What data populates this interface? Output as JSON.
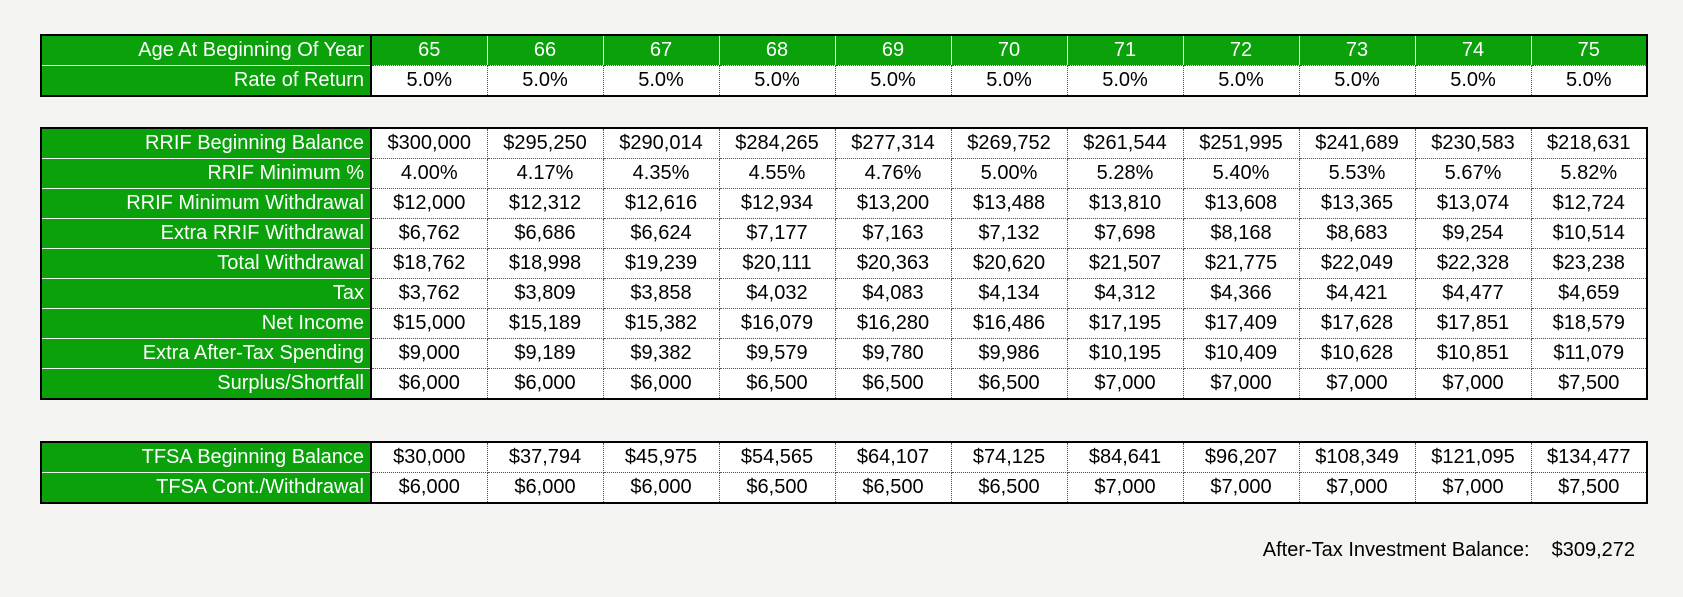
{
  "age_row": {
    "label": "Age At Beginning Of Year",
    "values": [
      "65",
      "66",
      "67",
      "68",
      "69",
      "70",
      "71",
      "72",
      "73",
      "74",
      "75"
    ]
  },
  "return_row": {
    "label": "Rate of Return",
    "values": [
      "5.0%",
      "5.0%",
      "5.0%",
      "5.0%",
      "5.0%",
      "5.0%",
      "5.0%",
      "5.0%",
      "5.0%",
      "5.0%",
      "5.0%"
    ]
  },
  "rrif_rows": [
    {
      "label": "RRIF Beginning Balance",
      "values": [
        "$300,000",
        "$295,250",
        "$290,014",
        "$284,265",
        "$277,314",
        "$269,752",
        "$261,544",
        "$251,995",
        "$241,689",
        "$230,583",
        "$218,631"
      ]
    },
    {
      "label": "RRIF Minimum %",
      "values": [
        "4.00%",
        "4.17%",
        "4.35%",
        "4.55%",
        "4.76%",
        "5.00%",
        "5.28%",
        "5.40%",
        "5.53%",
        "5.67%",
        "5.82%"
      ]
    },
    {
      "label": "RRIF Minimum Withdrawal",
      "values": [
        "$12,000",
        "$12,312",
        "$12,616",
        "$12,934",
        "$13,200",
        "$13,488",
        "$13,810",
        "$13,608",
        "$13,365",
        "$13,074",
        "$12,724"
      ]
    },
    {
      "label": "Extra RRIF Withdrawal",
      "values": [
        "$6,762",
        "$6,686",
        "$6,624",
        "$7,177",
        "$7,163",
        "$7,132",
        "$7,698",
        "$8,168",
        "$8,683",
        "$9,254",
        "$10,514"
      ]
    },
    {
      "label": "Total Withdrawal",
      "values": [
        "$18,762",
        "$18,998",
        "$19,239",
        "$20,111",
        "$20,363",
        "$20,620",
        "$21,507",
        "$21,775",
        "$22,049",
        "$22,328",
        "$23,238"
      ]
    },
    {
      "label": "Tax",
      "values": [
        "$3,762",
        "$3,809",
        "$3,858",
        "$4,032",
        "$4,083",
        "$4,134",
        "$4,312",
        "$4,366",
        "$4,421",
        "$4,477",
        "$4,659"
      ]
    },
    {
      "label": "Net Income",
      "values": [
        "$15,000",
        "$15,189",
        "$15,382",
        "$16,079",
        "$16,280",
        "$16,486",
        "$17,195",
        "$17,409",
        "$17,628",
        "$17,851",
        "$18,579"
      ]
    },
    {
      "label": "Extra After-Tax Spending",
      "values": [
        "$9,000",
        "$9,189",
        "$9,382",
        "$9,579",
        "$9,780",
        "$9,986",
        "$10,195",
        "$10,409",
        "$10,628",
        "$10,851",
        "$11,079"
      ]
    },
    {
      "label": "Surplus/Shortfall",
      "values": [
        "$6,000",
        "$6,000",
        "$6,000",
        "$6,500",
        "$6,500",
        "$6,500",
        "$7,000",
        "$7,000",
        "$7,000",
        "$7,000",
        "$7,500"
      ]
    }
  ],
  "tfsa_rows": [
    {
      "label": "TFSA Beginning Balance",
      "values": [
        "$30,000",
        "$37,794",
        "$45,975",
        "$54,565",
        "$64,107",
        "$74,125",
        "$84,641",
        "$96,207",
        "$108,349",
        "$121,095",
        "$134,477"
      ]
    },
    {
      "label": "TFSA Cont./Withdrawal",
      "values": [
        "$6,000",
        "$6,000",
        "$6,000",
        "$6,500",
        "$6,500",
        "$6,500",
        "$7,000",
        "$7,000",
        "$7,000",
        "$7,000",
        "$7,500"
      ]
    }
  ],
  "summary": {
    "label": "After-Tax Investment Balance:",
    "value": "$309,272"
  },
  "colors": {
    "header_green": "#0aa10a",
    "header_text": "#ffffff",
    "cell_background": "#ffffff",
    "page_background": "#f4f4f2"
  }
}
